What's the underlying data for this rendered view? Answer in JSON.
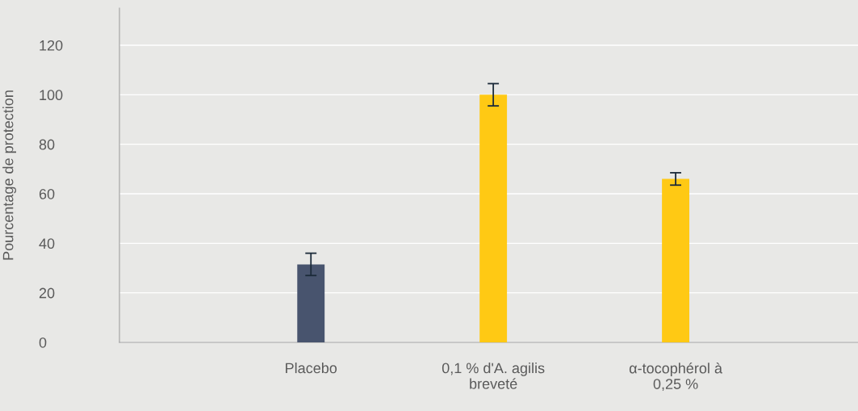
{
  "chart_data": {
    "type": "bar",
    "ylabel": "Pourcentage de protection",
    "categories": [
      "Placebo",
      "0,1 % d'A. agilis\nbreveté",
      "α-tocophérol à\n0,25 %"
    ],
    "values": [
      31.5,
      100,
      66
    ],
    "errors": [
      4.5,
      4.5,
      2.5
    ],
    "colors": [
      "#48546e",
      "#ffc914",
      "#ffc914"
    ],
    "ylim": [
      0,
      135
    ],
    "yticks": [
      0,
      20,
      40,
      60,
      80,
      100,
      120
    ],
    "grid": "y"
  }
}
